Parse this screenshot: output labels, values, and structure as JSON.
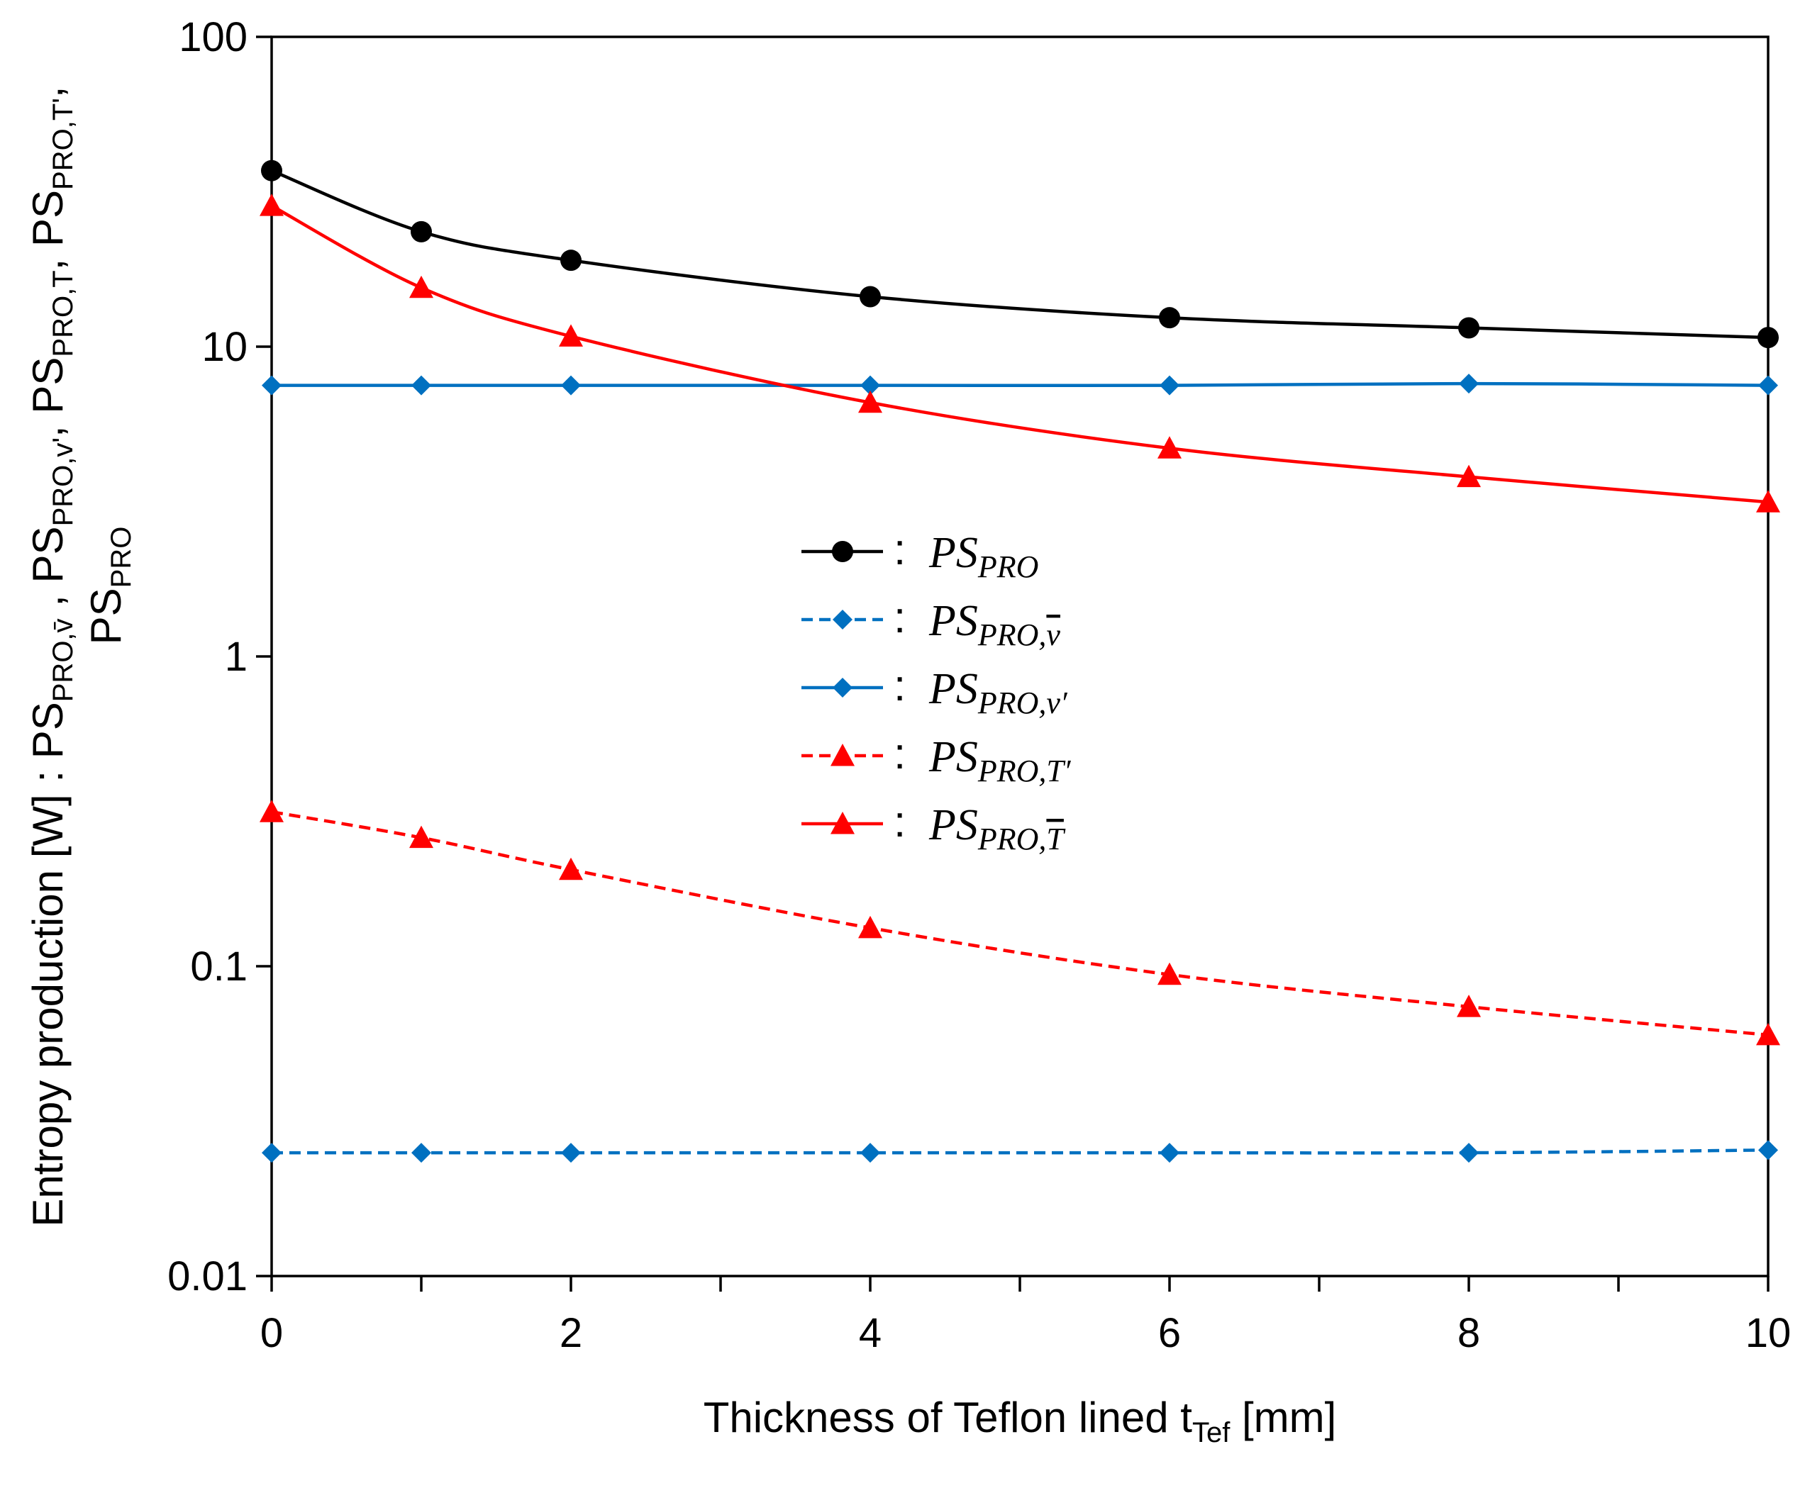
{
  "chart_data": {
    "type": "line",
    "title": "",
    "xlabel": {
      "main": "Thickness of Teflon lined t",
      "sub": "Tef",
      "unit": " [mm]"
    },
    "ylabel": {
      "line1": [
        {
          "t": "Entropy production [W] : PS"
        },
        {
          "t": "PRO,",
          "sub": true
        },
        {
          "t": "v̄",
          "sub": true
        },
        {
          "t": " , PS"
        },
        {
          "t": "PRO,v'",
          "sub": true
        },
        {
          "t": ", PS"
        },
        {
          "t": "PRO,T",
          "sub": true
        },
        {
          "t": ", PS"
        },
        {
          "t": "PRO,T'",
          "sub": true
        },
        {
          "t": ","
        }
      ],
      "line2": [
        {
          "t": "PS"
        },
        {
          "t": "PRO",
          "sub": true
        }
      ]
    },
    "x_scale": "linear",
    "y_scale": "log",
    "xlim": [
      0,
      10
    ],
    "ylim": [
      0.01,
      100
    ],
    "x_ticks": [
      0,
      2,
      4,
      6,
      8,
      10
    ],
    "x_tick_labels": [
      "0",
      "2",
      "4",
      "6",
      "8",
      "10"
    ],
    "y_ticks": [
      0.01,
      0.1,
      1,
      10,
      100
    ],
    "y_tick_labels": [
      "0.01",
      "0.1",
      "1",
      "10",
      "100"
    ],
    "grid": false,
    "legend_position": "center",
    "x": [
      0,
      1,
      2,
      4,
      6,
      8,
      10
    ],
    "series": [
      {
        "name": "PS_PRO",
        "legend_main": "PS",
        "legend_sub": "PRO",
        "legend_bar": "",
        "legend_prime": "",
        "color": "#000000",
        "dash": "solid",
        "marker": "circle",
        "values": [
          37,
          23.5,
          19,
          14.5,
          12.4,
          11.5,
          10.7
        ]
      },
      {
        "name": "PS_PRO,v̄",
        "legend_main": "PS",
        "legend_sub": "PRO,",
        "legend_bar": "v",
        "legend_prime": "",
        "color": "#0070C0",
        "dash": "dashed",
        "marker": "diamond",
        "values": [
          0.025,
          0.025,
          0.025,
          0.025,
          0.025,
          0.025,
          0.0255
        ]
      },
      {
        "name": "PS_PRO,v'",
        "legend_main": "PS",
        "legend_sub": "PRO,v",
        "legend_bar": "",
        "legend_prime": "′",
        "color": "#0070C0",
        "dash": "solid",
        "marker": "diamond",
        "values": [
          7.5,
          7.5,
          7.5,
          7.5,
          7.5,
          7.6,
          7.5
        ]
      },
      {
        "name": "PS_PRO,T'",
        "legend_main": "PS",
        "legend_sub": "PRO,T",
        "legend_bar": "",
        "legend_prime": "′",
        "color": "#FF0000",
        "dash": "dashed",
        "marker": "triangle",
        "values": [
          0.315,
          0.26,
          0.205,
          0.133,
          0.094,
          0.074,
          0.06
        ]
      },
      {
        "name": "PS_PRO,T̄",
        "legend_main": "PS",
        "legend_sub": "PRO,",
        "legend_bar": "T",
        "legend_prime": "",
        "color": "#FF0000",
        "dash": "solid",
        "marker": "triangle",
        "values": [
          28.5,
          15.5,
          10.8,
          6.6,
          4.7,
          3.8,
          3.15
        ]
      }
    ],
    "legend_separator": ":"
  }
}
